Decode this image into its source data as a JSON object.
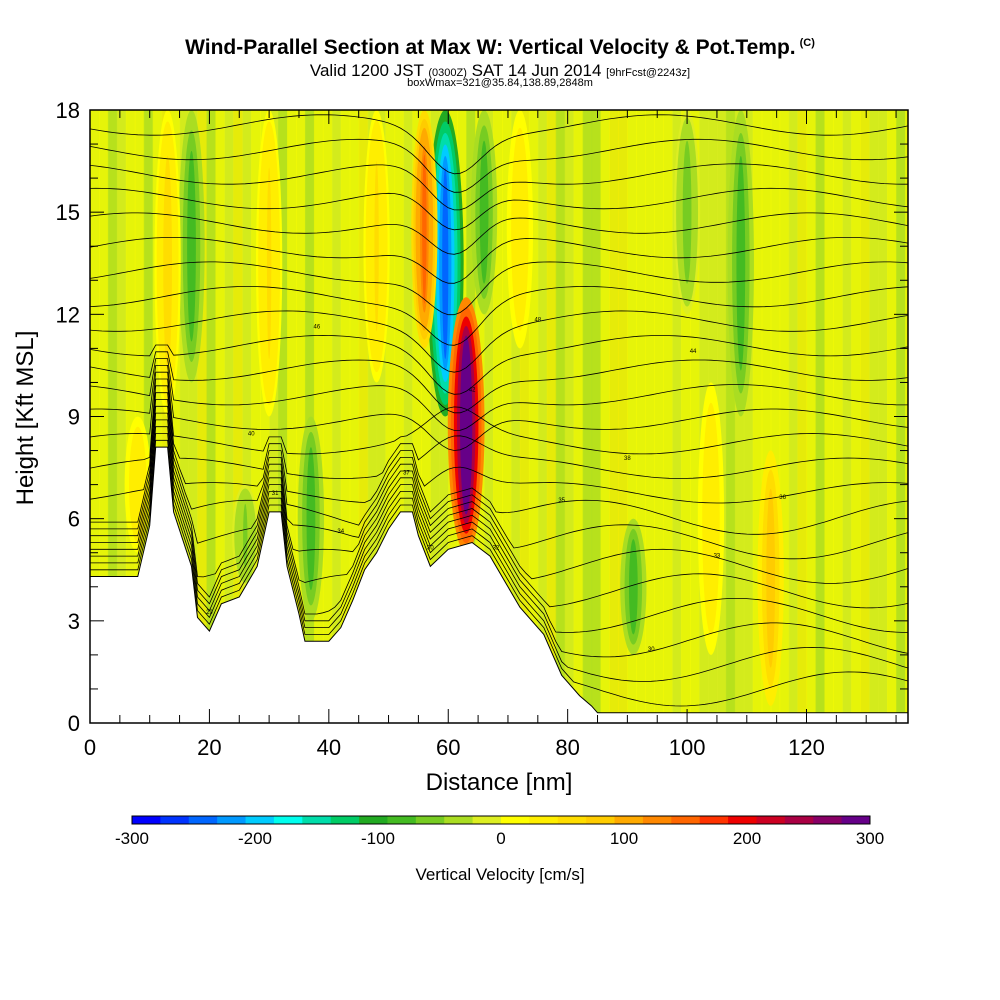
{
  "title": {
    "line1": "Wind-Parallel Section at Max W: Vertical Velocity & Pot.Temp.",
    "copyright": "(C)",
    "line2_a": "Valid 1200 JST",
    "line2_b": "(0300Z)",
    "line2_c": "SAT 14 Jun 2014",
    "line2_d": "[9hrFcst@2243z]",
    "line3": "boxWmax=321@35.84,138.89,2848m"
  },
  "chart_data": {
    "type": "heatmap",
    "xlabel": "Distance [nm]",
    "ylabel": "Height [Kft MSL]",
    "xlim": [
      0,
      137
    ],
    "ylim": [
      0,
      18
    ],
    "xticks": [
      0,
      20,
      40,
      60,
      80,
      100,
      120
    ],
    "yticks": [
      0,
      3,
      6,
      9,
      12,
      15,
      18
    ],
    "colorbar": {
      "title": "Vertical Velocity [cm/s]",
      "range": [
        -300,
        300
      ],
      "ticks": [
        -300,
        -200,
        -100,
        0,
        100,
        200,
        300
      ],
      "colors": [
        "#0000ff",
        "#0033ff",
        "#0066ff",
        "#0099ff",
        "#00ccff",
        "#00ffee",
        "#00ddaa",
        "#00cc66",
        "#22aa22",
        "#44bb22",
        "#77cc22",
        "#aadd22",
        "#ddee22",
        "#ffff00",
        "#ffee00",
        "#ffdd00",
        "#ffcc00",
        "#ffaa00",
        "#ff8800",
        "#ff6600",
        "#ff3300",
        "#ee0000",
        "#cc0022",
        "#aa0044",
        "#880066",
        "#660088"
      ]
    },
    "max_updraft": {
      "distance_nm": 63,
      "height_kft": 8.5,
      "value_cms": 321
    },
    "updrafts": [
      {
        "x": 63,
        "ybot": 5,
        "ytop": 12.5,
        "w": 321
      },
      {
        "x": 56,
        "ybot": 11,
        "ytop": 18,
        "w": 150
      },
      {
        "x": 13,
        "ybot": 9,
        "ytop": 18,
        "w": 60
      },
      {
        "x": 30,
        "ybot": 9,
        "ytop": 18,
        "w": 50
      },
      {
        "x": 48,
        "ybot": 10,
        "ytop": 18,
        "w": 50
      },
      {
        "x": 72,
        "ybot": 11,
        "ytop": 18,
        "w": 40
      },
      {
        "x": 104,
        "ybot": 2,
        "ytop": 10,
        "w": 40
      },
      {
        "x": 114,
        "ybot": 0.5,
        "ytop": 8,
        "w": 80
      },
      {
        "x": 8,
        "ybot": 5,
        "ytop": 9,
        "w": 40
      }
    ],
    "downdrafts": [
      {
        "x": 59.5,
        "ybot": 9,
        "ytop": 18,
        "w": -250
      },
      {
        "x": 37,
        "ybot": 3,
        "ytop": 9,
        "w": -90
      },
      {
        "x": 17,
        "ybot": 10,
        "ytop": 18,
        "w": -80
      },
      {
        "x": 91,
        "ybot": 2,
        "ytop": 6,
        "w": -80
      },
      {
        "x": 109,
        "ybot": 9,
        "ytop": 18,
        "w": -80
      },
      {
        "x": 66,
        "ybot": 12,
        "ytop": 18,
        "w": -90
      },
      {
        "x": 100,
        "ybot": 12,
        "ytop": 18,
        "w": -60
      },
      {
        "x": 26,
        "ybot": 4,
        "ytop": 7,
        "w": -50
      }
    ],
    "terrain": [
      {
        "x": 0,
        "h": 4.3
      },
      {
        "x": 8,
        "h": 4.3
      },
      {
        "x": 10,
        "h": 5.8
      },
      {
        "x": 11,
        "h": 8.1
      },
      {
        "x": 13,
        "h": 8.1
      },
      {
        "x": 14,
        "h": 6.2
      },
      {
        "x": 17,
        "h": 4.6
      },
      {
        "x": 18,
        "h": 3.1
      },
      {
        "x": 20,
        "h": 2.7
      },
      {
        "x": 22,
        "h": 3.5
      },
      {
        "x": 25,
        "h": 3.7
      },
      {
        "x": 28,
        "h": 4.6
      },
      {
        "x": 30,
        "h": 6.2
      },
      {
        "x": 32,
        "h": 6.2
      },
      {
        "x": 33,
        "h": 4.6
      },
      {
        "x": 35,
        "h": 3.2
      },
      {
        "x": 36,
        "h": 2.4
      },
      {
        "x": 40,
        "h": 2.4
      },
      {
        "x": 42,
        "h": 2.8
      },
      {
        "x": 44,
        "h": 3.6
      },
      {
        "x": 46,
        "h": 4.5
      },
      {
        "x": 48,
        "h": 5.0
      },
      {
        "x": 50,
        "h": 5.7
      },
      {
        "x": 52,
        "h": 6.2
      },
      {
        "x": 54,
        "h": 6.2
      },
      {
        "x": 55,
        "h": 5.5
      },
      {
        "x": 57,
        "h": 4.6
      },
      {
        "x": 60,
        "h": 5.1
      },
      {
        "x": 64,
        "h": 5.3
      },
      {
        "x": 67,
        "h": 4.9
      },
      {
        "x": 70,
        "h": 4.0
      },
      {
        "x": 72,
        "h": 3.4
      },
      {
        "x": 76,
        "h": 2.6
      },
      {
        "x": 79,
        "h": 1.4
      },
      {
        "x": 82,
        "h": 0.8
      },
      {
        "x": 84,
        "h": 0.5
      },
      {
        "x": 85,
        "h": 0.3
      },
      {
        "x": 137,
        "h": 0.3
      }
    ],
    "isentropes_label_values": [
      "29",
      "30",
      "30",
      "31",
      "32",
      "33",
      "34",
      "35",
      "36",
      "37",
      "38",
      "40",
      "42",
      "44",
      "46",
      "48"
    ]
  }
}
